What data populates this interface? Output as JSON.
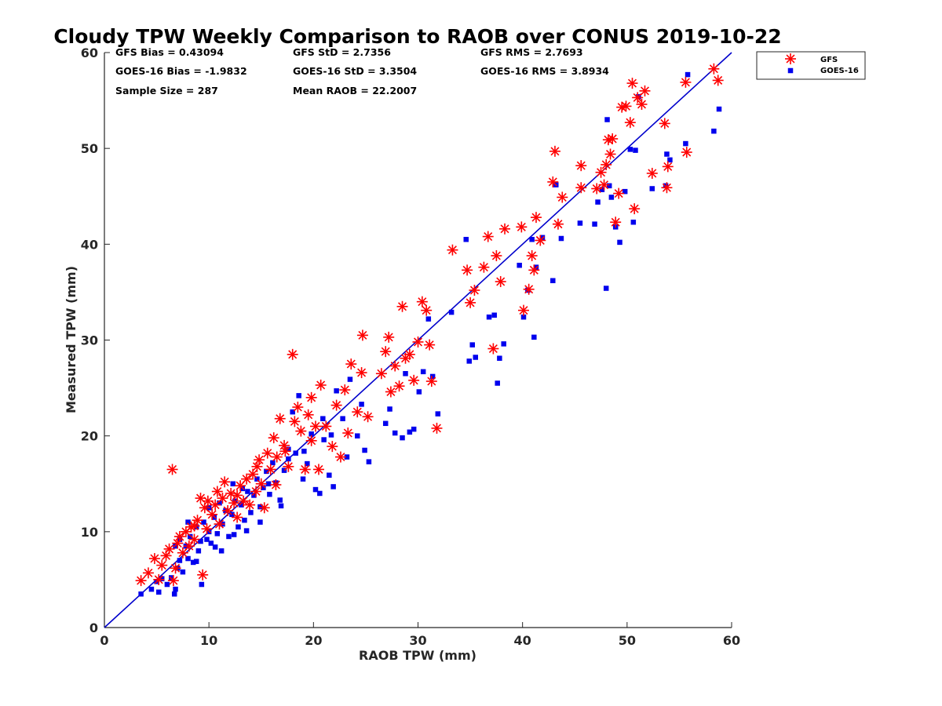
{
  "chart_data": {
    "type": "scatter",
    "title": "Cloudy TPW Weekly Comparison to RAOB over CONUS 2019-10-22",
    "xlabel": "RAOB TPW (mm)",
    "ylabel": "Measured TPW (mm)",
    "xlim": [
      0,
      60
    ],
    "ylim": [
      0,
      60
    ],
    "xticks": [
      0,
      10,
      20,
      30,
      40,
      50,
      60
    ],
    "yticks": [
      0,
      10,
      20,
      30,
      40,
      50,
      60
    ],
    "grid": false,
    "legend_position": "top-right, outside plot",
    "reference_line": {
      "x": [
        0,
        60
      ],
      "y": [
        0,
        60
      ],
      "color": "#0000cc"
    },
    "stats": {
      "gfs_bias": "GFS Bias = 0.43094",
      "goes_bias": "GOES-16 Bias = -1.9832",
      "sample_size": "Sample Size = 287",
      "gfs_std": "GFS StD = 2.7356",
      "goes_std": "GOES-16 StD = 3.3504",
      "mean_raob": "Mean RAOB = 22.2007",
      "gfs_rms": "GFS RMS = 2.7693",
      "goes_rms": "GOES-16 RMS = 3.8934"
    },
    "series": [
      {
        "name": "GFS",
        "marker": "asterisk",
        "color": "#ff0000",
        "points": [
          [
            3.5,
            4.9
          ],
          [
            4.2,
            5.7
          ],
          [
            4.8,
            7.2
          ],
          [
            5.2,
            5.0
          ],
          [
            5.5,
            6.5
          ],
          [
            5.9,
            7.5
          ],
          [
            6.2,
            8.2
          ],
          [
            6.5,
            16.5
          ],
          [
            6.6,
            4.9
          ],
          [
            6.8,
            6.2
          ],
          [
            7.0,
            8.8
          ],
          [
            7.2,
            9.5
          ],
          [
            7.5,
            7.8
          ],
          [
            7.8,
            10.0
          ],
          [
            8.1,
            8.5
          ],
          [
            8.3,
            10.5
          ],
          [
            8.6,
            9.2
          ],
          [
            8.9,
            11.2
          ],
          [
            9.2,
            13.5
          ],
          [
            9.4,
            5.5
          ],
          [
            9.6,
            12.5
          ],
          [
            9.9,
            13.2
          ],
          [
            10.3,
            11.8
          ],
          [
            10.6,
            12.8
          ],
          [
            10.8,
            14.2
          ],
          [
            11.0,
            10.8
          ],
          [
            11.3,
            13.5
          ],
          [
            11.5,
            15.2
          ],
          [
            11.8,
            12.2
          ],
          [
            12.1,
            14.0
          ],
          [
            12.4,
            13.0
          ],
          [
            12.7,
            11.5
          ],
          [
            13.0,
            14.8
          ],
          [
            13.3,
            13.2
          ],
          [
            13.6,
            15.5
          ],
          [
            13.9,
            12.8
          ],
          [
            14.2,
            16.0
          ],
          [
            14.5,
            14.2
          ],
          [
            14.8,
            17.5
          ],
          [
            15.0,
            15.0
          ],
          [
            15.3,
            12.5
          ],
          [
            15.6,
            18.2
          ],
          [
            15.9,
            16.5
          ],
          [
            16.2,
            19.8
          ],
          [
            16.5,
            17.8
          ],
          [
            16.8,
            21.8
          ],
          [
            17.2,
            19.0
          ],
          [
            17.6,
            16.8
          ],
          [
            18.0,
            28.5
          ],
          [
            18.2,
            21.5
          ],
          [
            18.5,
            23.0
          ],
          [
            18.8,
            20.5
          ],
          [
            19.2,
            16.5
          ],
          [
            19.5,
            22.2
          ],
          [
            19.8,
            24.0
          ],
          [
            20.2,
            21.0
          ],
          [
            20.5,
            16.5
          ],
          [
            20.7,
            25.3
          ],
          [
            21.2,
            21.0
          ],
          [
            21.8,
            18.9
          ],
          [
            22.2,
            23.2
          ],
          [
            22.6,
            17.8
          ],
          [
            23.0,
            24.8
          ],
          [
            23.3,
            20.3
          ],
          [
            23.6,
            27.5
          ],
          [
            24.2,
            22.5
          ],
          [
            24.6,
            26.6
          ],
          [
            24.7,
            30.5
          ],
          [
            25.2,
            22.0
          ],
          [
            26.5,
            26.5
          ],
          [
            26.9,
            28.8
          ],
          [
            27.2,
            30.3
          ],
          [
            27.4,
            24.6
          ],
          [
            27.8,
            27.3
          ],
          [
            28.2,
            25.2
          ],
          [
            28.5,
            33.5
          ],
          [
            28.8,
            28.1
          ],
          [
            29.2,
            28.5
          ],
          [
            29.6,
            25.8
          ],
          [
            30.0,
            29.8
          ],
          [
            30.4,
            34.0
          ],
          [
            30.8,
            33.1
          ],
          [
            31.1,
            29.5
          ],
          [
            31.3,
            25.7
          ],
          [
            31.8,
            20.8
          ],
          [
            33.3,
            39.4
          ],
          [
            34.7,
            37.3
          ],
          [
            35.0,
            33.9
          ],
          [
            35.4,
            35.2
          ],
          [
            36.3,
            37.6
          ],
          [
            36.7,
            40.8
          ],
          [
            37.2,
            29.1
          ],
          [
            37.5,
            38.8
          ],
          [
            37.9,
            36.1
          ],
          [
            38.3,
            41.6
          ],
          [
            39.9,
            41.8
          ],
          [
            40.1,
            33.1
          ],
          [
            40.6,
            35.3
          ],
          [
            40.9,
            38.8
          ],
          [
            41.3,
            42.8
          ],
          [
            41.1,
            37.3
          ],
          [
            41.7,
            40.4
          ],
          [
            42.9,
            46.5
          ],
          [
            43.1,
            49.7
          ],
          [
            43.4,
            42.1
          ],
          [
            43.8,
            44.9
          ],
          [
            45.6,
            45.9
          ],
          [
            45.6,
            48.2
          ],
          [
            47.1,
            45.8
          ],
          [
            47.5,
            47.5
          ],
          [
            47.8,
            46.2
          ],
          [
            48.0,
            48.3
          ],
          [
            48.2,
            50.9
          ],
          [
            48.4,
            49.4
          ],
          [
            48.6,
            51.0
          ],
          [
            48.9,
            42.3
          ],
          [
            49.2,
            45.3
          ],
          [
            49.5,
            54.3
          ],
          [
            49.9,
            54.4
          ],
          [
            50.3,
            52.7
          ],
          [
            50.5,
            56.8
          ],
          [
            50.7,
            43.7
          ],
          [
            51.0,
            55.3
          ],
          [
            51.4,
            54.6
          ],
          [
            51.7,
            56.0
          ],
          [
            52.4,
            47.4
          ],
          [
            53.6,
            52.6
          ],
          [
            53.8,
            45.9
          ],
          [
            53.9,
            48.1
          ],
          [
            55.6,
            56.9
          ],
          [
            55.7,
            49.6
          ],
          [
            58.3,
            58.3
          ],
          [
            58.7,
            57.1
          ],
          [
            8.6,
            10.6
          ],
          [
            9.8,
            10.3
          ],
          [
            12.7,
            13.8
          ],
          [
            14.6,
            16.8
          ],
          [
            16.4,
            14.9
          ],
          [
            17.3,
            18.4
          ],
          [
            19.8,
            19.5
          ]
        ]
      },
      {
        "name": "GOES-16",
        "marker": "square",
        "color": "#0000ee",
        "points": [
          [
            3.5,
            3.5
          ],
          [
            4.5,
            4.0
          ],
          [
            5.0,
            4.8
          ],
          [
            5.2,
            3.7
          ],
          [
            5.5,
            5.1
          ],
          [
            6.0,
            4.5
          ],
          [
            6.4,
            5.2
          ],
          [
            6.7,
            3.5
          ],
          [
            6.8,
            8.5
          ],
          [
            7.0,
            6.2
          ],
          [
            7.2,
            7.0
          ],
          [
            7.5,
            5.8
          ],
          [
            7.8,
            8.5
          ],
          [
            8.0,
            7.2
          ],
          [
            8.2,
            9.5
          ],
          [
            8.5,
            6.8
          ],
          [
            8.8,
            10.5
          ],
          [
            9.0,
            8.0
          ],
          [
            9.3,
            4.5
          ],
          [
            9.5,
            11.0
          ],
          [
            9.8,
            9.2
          ],
          [
            10.0,
            12.5
          ],
          [
            10.2,
            8.8
          ],
          [
            10.5,
            11.5
          ],
          [
            10.8,
            9.8
          ],
          [
            11.0,
            13.0
          ],
          [
            11.3,
            10.8
          ],
          [
            11.6,
            12.2
          ],
          [
            11.9,
            9.5
          ],
          [
            12.2,
            11.8
          ],
          [
            12.5,
            13.2
          ],
          [
            12.8,
            10.5
          ],
          [
            13.1,
            12.8
          ],
          [
            13.4,
            11.2
          ],
          [
            13.7,
            14.2
          ],
          [
            14.0,
            12.0
          ],
          [
            14.3,
            13.8
          ],
          [
            14.6,
            15.5
          ],
          [
            14.9,
            12.6
          ],
          [
            15.2,
            14.6
          ],
          [
            15.5,
            16.3
          ],
          [
            15.8,
            13.9
          ],
          [
            16.1,
            17.2
          ],
          [
            16.4,
            15.1
          ],
          [
            16.8,
            13.3
          ],
          [
            17.2,
            16.4
          ],
          [
            17.6,
            18.6
          ],
          [
            18.0,
            22.5
          ],
          [
            18.3,
            18.2
          ],
          [
            18.6,
            24.2
          ],
          [
            19.0,
            15.5
          ],
          [
            19.4,
            17.1
          ],
          [
            19.8,
            20.2
          ],
          [
            20.2,
            14.4
          ],
          [
            20.6,
            14.0
          ],
          [
            21.0,
            19.6
          ],
          [
            21.5,
            15.9
          ],
          [
            21.9,
            14.7
          ],
          [
            22.2,
            24.7
          ],
          [
            22.8,
            21.8
          ],
          [
            23.2,
            17.8
          ],
          [
            23.5,
            25.9
          ],
          [
            24.2,
            20.0
          ],
          [
            24.6,
            23.3
          ],
          [
            24.9,
            18.5
          ],
          [
            25.3,
            17.3
          ],
          [
            26.9,
            21.3
          ],
          [
            27.3,
            22.8
          ],
          [
            27.8,
            20.3
          ],
          [
            28.5,
            19.8
          ],
          [
            28.8,
            26.5
          ],
          [
            29.2,
            20.4
          ],
          [
            29.6,
            20.7
          ],
          [
            30.1,
            24.6
          ],
          [
            30.5,
            26.7
          ],
          [
            31.0,
            32.2
          ],
          [
            31.4,
            26.2
          ],
          [
            31.9,
            22.3
          ],
          [
            33.2,
            32.9
          ],
          [
            34.6,
            40.5
          ],
          [
            34.9,
            27.8
          ],
          [
            35.2,
            29.5
          ],
          [
            35.5,
            28.2
          ],
          [
            36.8,
            32.4
          ],
          [
            37.3,
            32.6
          ],
          [
            37.6,
            25.5
          ],
          [
            37.8,
            28.1
          ],
          [
            38.2,
            29.6
          ],
          [
            39.7,
            37.8
          ],
          [
            40.1,
            32.4
          ],
          [
            40.5,
            35.2
          ],
          [
            40.9,
            40.5
          ],
          [
            41.1,
            30.3
          ],
          [
            41.3,
            37.6
          ],
          [
            41.9,
            40.7
          ],
          [
            42.9,
            36.2
          ],
          [
            43.2,
            46.2
          ],
          [
            43.7,
            40.6
          ],
          [
            45.5,
            42.2
          ],
          [
            46.9,
            42.1
          ],
          [
            47.2,
            44.4
          ],
          [
            47.6,
            45.7
          ],
          [
            48.0,
            35.4
          ],
          [
            48.1,
            53.0
          ],
          [
            48.3,
            46.1
          ],
          [
            48.5,
            44.9
          ],
          [
            48.9,
            41.8
          ],
          [
            49.3,
            40.2
          ],
          [
            49.8,
            45.5
          ],
          [
            50.3,
            49.9
          ],
          [
            50.6,
            42.3
          ],
          [
            50.8,
            49.8
          ],
          [
            51.1,
            55.4
          ],
          [
            52.4,
            45.8
          ],
          [
            53.7,
            46.1
          ],
          [
            53.8,
            49.4
          ],
          [
            54.1,
            48.8
          ],
          [
            55.6,
            50.5
          ],
          [
            55.8,
            57.7
          ],
          [
            58.3,
            51.8
          ],
          [
            58.8,
            54.1
          ],
          [
            7.2,
            9.2
          ],
          [
            8.8,
            6.9
          ],
          [
            10.6,
            8.4
          ],
          [
            12.4,
            9.7
          ],
          [
            13.6,
            10.1
          ],
          [
            14.9,
            11.0
          ],
          [
            15.7,
            15.0
          ],
          [
            16.9,
            12.7
          ],
          [
            17.6,
            17.6
          ],
          [
            19.1,
            18.4
          ],
          [
            20.9,
            21.8
          ],
          [
            21.7,
            20.1
          ],
          [
            12.3,
            15.0
          ],
          [
            13.2,
            14.5
          ],
          [
            11.2,
            8.0
          ],
          [
            10.0,
            10.0
          ],
          [
            9.2,
            9.0
          ],
          [
            8.0,
            11.0
          ],
          [
            6.8,
            4.0
          ]
        ]
      }
    ]
  }
}
